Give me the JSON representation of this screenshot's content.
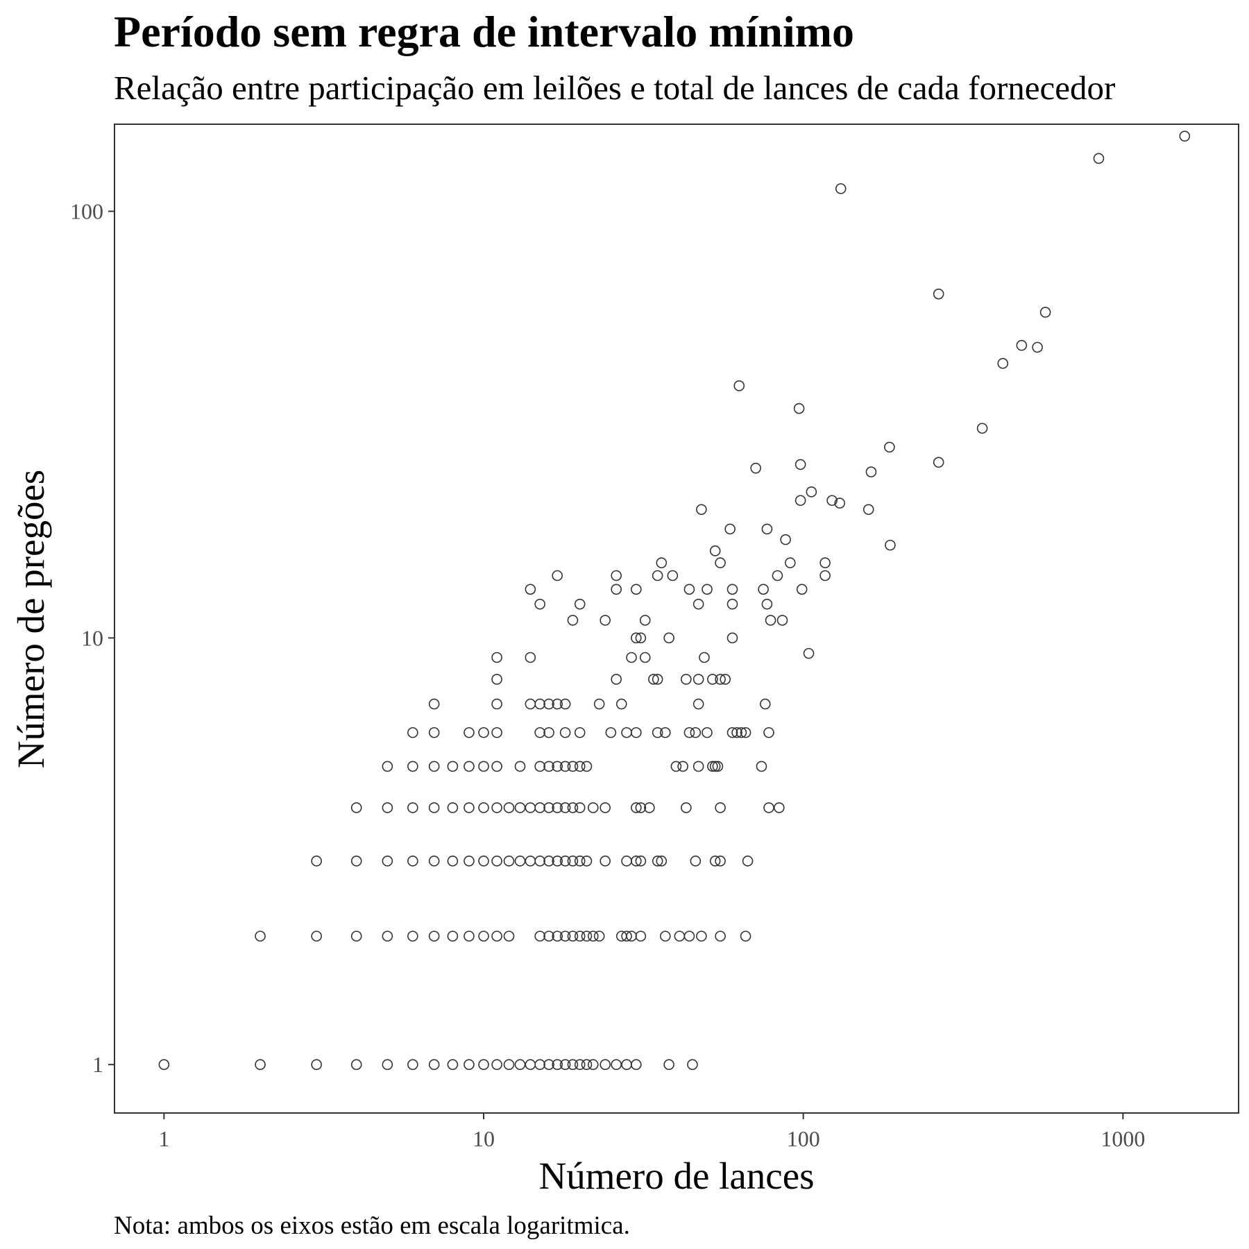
{
  "chart_data": {
    "type": "scatter",
    "title": "Período sem regra de intervalo mínimo",
    "subtitle": "Relação entre participação em leilões e total de lances de cada fornecedor",
    "xlabel": "Número de lances",
    "ylabel": "Número de pregões",
    "caption": "Nota: ambos os eixos estão em escala logaritmica.",
    "x_scale": "log",
    "y_scale": "log",
    "xlim": [
      0.7,
      2300
    ],
    "ylim": [
      0.77,
      160
    ],
    "x_ticks": [
      1,
      10,
      100,
      1000
    ],
    "x_tick_labels": [
      "1",
      "10",
      "100",
      "1000"
    ],
    "y_ticks": [
      1,
      10,
      100
    ],
    "y_tick_labels": [
      "1",
      "10",
      "100"
    ],
    "grid": false,
    "marker": "open-circle",
    "point_color": "#333333",
    "points": [
      [
        1,
        1
      ],
      [
        2,
        1
      ],
      [
        3,
        1
      ],
      [
        4,
        1
      ],
      [
        5,
        1
      ],
      [
        6,
        1
      ],
      [
        7,
        1
      ],
      [
        8,
        1
      ],
      [
        9,
        1
      ],
      [
        10,
        1
      ],
      [
        11,
        1
      ],
      [
        12,
        1
      ],
      [
        13,
        1
      ],
      [
        14,
        1
      ],
      [
        15,
        1
      ],
      [
        16,
        1
      ],
      [
        17,
        1
      ],
      [
        18,
        1
      ],
      [
        19,
        1
      ],
      [
        20,
        1
      ],
      [
        21,
        1
      ],
      [
        22,
        1
      ],
      [
        24,
        1
      ],
      [
        26,
        1
      ],
      [
        28,
        1
      ],
      [
        30,
        1
      ],
      [
        38,
        1
      ],
      [
        45,
        1
      ],
      [
        2,
        2
      ],
      [
        3,
        2
      ],
      [
        4,
        2
      ],
      [
        5,
        2
      ],
      [
        6,
        2
      ],
      [
        7,
        2
      ],
      [
        8,
        2
      ],
      [
        9,
        2
      ],
      [
        10,
        2
      ],
      [
        11,
        2
      ],
      [
        12,
        2
      ],
      [
        15,
        2
      ],
      [
        16,
        2
      ],
      [
        17,
        2
      ],
      [
        18,
        2
      ],
      [
        19,
        2
      ],
      [
        20,
        2
      ],
      [
        21,
        2
      ],
      [
        22,
        2
      ],
      [
        23,
        2
      ],
      [
        27,
        2
      ],
      [
        28,
        2
      ],
      [
        29,
        2
      ],
      [
        31,
        2
      ],
      [
        37,
        2
      ],
      [
        41,
        2
      ],
      [
        44,
        2
      ],
      [
        48,
        2
      ],
      [
        55,
        2
      ],
      [
        66,
        2
      ],
      [
        3,
        3
      ],
      [
        4,
        3
      ],
      [
        5,
        3
      ],
      [
        6,
        3
      ],
      [
        7,
        3
      ],
      [
        8,
        3
      ],
      [
        9,
        3
      ],
      [
        10,
        3
      ],
      [
        11,
        3
      ],
      [
        12,
        3
      ],
      [
        13,
        3
      ],
      [
        14,
        3
      ],
      [
        15,
        3
      ],
      [
        16,
        3
      ],
      [
        17,
        3
      ],
      [
        18,
        3
      ],
      [
        19,
        3
      ],
      [
        20,
        3
      ],
      [
        21,
        3
      ],
      [
        24,
        3
      ],
      [
        28,
        3
      ],
      [
        30,
        3
      ],
      [
        31,
        3
      ],
      [
        35,
        3
      ],
      [
        36,
        3
      ],
      [
        46,
        3
      ],
      [
        53,
        3
      ],
      [
        55,
        3
      ],
      [
        67,
        3
      ],
      [
        4,
        4
      ],
      [
        5,
        4
      ],
      [
        6,
        4
      ],
      [
        7,
        4
      ],
      [
        8,
        4
      ],
      [
        9,
        4
      ],
      [
        10,
        4
      ],
      [
        11,
        4
      ],
      [
        12,
        4
      ],
      [
        13,
        4
      ],
      [
        14,
        4
      ],
      [
        15,
        4
      ],
      [
        16,
        4
      ],
      [
        17,
        4
      ],
      [
        18,
        4
      ],
      [
        19,
        4
      ],
      [
        20,
        4
      ],
      [
        22,
        4
      ],
      [
        24,
        4
      ],
      [
        30,
        4
      ],
      [
        31,
        4
      ],
      [
        33,
        4
      ],
      [
        43,
        4
      ],
      [
        55,
        4
      ],
      [
        78,
        4
      ],
      [
        84,
        4
      ],
      [
        5,
        5
      ],
      [
        6,
        5
      ],
      [
        7,
        5
      ],
      [
        8,
        5
      ],
      [
        9,
        5
      ],
      [
        10,
        5
      ],
      [
        11,
        5
      ],
      [
        13,
        5
      ],
      [
        15,
        5
      ],
      [
        16,
        5
      ],
      [
        17,
        5
      ],
      [
        18,
        5
      ],
      [
        19,
        5
      ],
      [
        20,
        5
      ],
      [
        21,
        5
      ],
      [
        40,
        5
      ],
      [
        42,
        5
      ],
      [
        47,
        5
      ],
      [
        52,
        5
      ],
      [
        53,
        5
      ],
      [
        54,
        5
      ],
      [
        74,
        5
      ],
      [
        6,
        6
      ],
      [
        7,
        6
      ],
      [
        9,
        6
      ],
      [
        10,
        6
      ],
      [
        11,
        6
      ],
      [
        15,
        6
      ],
      [
        16,
        6
      ],
      [
        18,
        6
      ],
      [
        20,
        6
      ],
      [
        25,
        6
      ],
      [
        28,
        6
      ],
      [
        30,
        6
      ],
      [
        35,
        6
      ],
      [
        37,
        6
      ],
      [
        44,
        6
      ],
      [
        46,
        6
      ],
      [
        50,
        6
      ],
      [
        60,
        6
      ],
      [
        62,
        6
      ],
      [
        64,
        6
      ],
      [
        66,
        6
      ],
      [
        78,
        6
      ],
      [
        7,
        7
      ],
      [
        11,
        7
      ],
      [
        14,
        7
      ],
      [
        15,
        7
      ],
      [
        16,
        7
      ],
      [
        17,
        7
      ],
      [
        18,
        7
      ],
      [
        23,
        7
      ],
      [
        27,
        7
      ],
      [
        47,
        7
      ],
      [
        76,
        7
      ],
      [
        11,
        8
      ],
      [
        26,
        8
      ],
      [
        34,
        8
      ],
      [
        35,
        8
      ],
      [
        43,
        8
      ],
      [
        47,
        8
      ],
      [
        52,
        8
      ],
      [
        55,
        8
      ],
      [
        57,
        8
      ],
      [
        11,
        9
      ],
      [
        14,
        9
      ],
      [
        29,
        9
      ],
      [
        32,
        9
      ],
      [
        49,
        9
      ],
      [
        30,
        10
      ],
      [
        31,
        10
      ],
      [
        38,
        10
      ],
      [
        60,
        10
      ],
      [
        104,
        9.2
      ],
      [
        19,
        11
      ],
      [
        24,
        11
      ],
      [
        32,
        11
      ],
      [
        79,
        11
      ],
      [
        86,
        11
      ],
      [
        15,
        12
      ],
      [
        20,
        12
      ],
      [
        47,
        12
      ],
      [
        60,
        12
      ],
      [
        77,
        12
      ],
      [
        14,
        13
      ],
      [
        26,
        13
      ],
      [
        30,
        13
      ],
      [
        44,
        13
      ],
      [
        50,
        13
      ],
      [
        60,
        13
      ],
      [
        75,
        13
      ],
      [
        99,
        13
      ],
      [
        17,
        14
      ],
      [
        26,
        14
      ],
      [
        35,
        14
      ],
      [
        39,
        14
      ],
      [
        83,
        14
      ],
      [
        117,
        14
      ],
      [
        36,
        15
      ],
      [
        55,
        15
      ],
      [
        91,
        15
      ],
      [
        117,
        15
      ],
      [
        53,
        16
      ],
      [
        88,
        17
      ],
      [
        187,
        16.5
      ],
      [
        59,
        18
      ],
      [
        77,
        18
      ],
      [
        48,
        20
      ],
      [
        160,
        20
      ],
      [
        98,
        21
      ],
      [
        123,
        21
      ],
      [
        130,
        20.7
      ],
      [
        106,
        22
      ],
      [
        71,
        25
      ],
      [
        98,
        25.5
      ],
      [
        163,
        24.5
      ],
      [
        265,
        25.8
      ],
      [
        186,
        28
      ],
      [
        363,
        31
      ],
      [
        97,
        34.5
      ],
      [
        63,
        39
      ],
      [
        421,
        44
      ],
      [
        482,
        48.5
      ],
      [
        540,
        48
      ],
      [
        572,
        58
      ],
      [
        265,
        64
      ],
      [
        131,
        113
      ],
      [
        840,
        133
      ],
      [
        1560,
        150
      ]
    ]
  }
}
